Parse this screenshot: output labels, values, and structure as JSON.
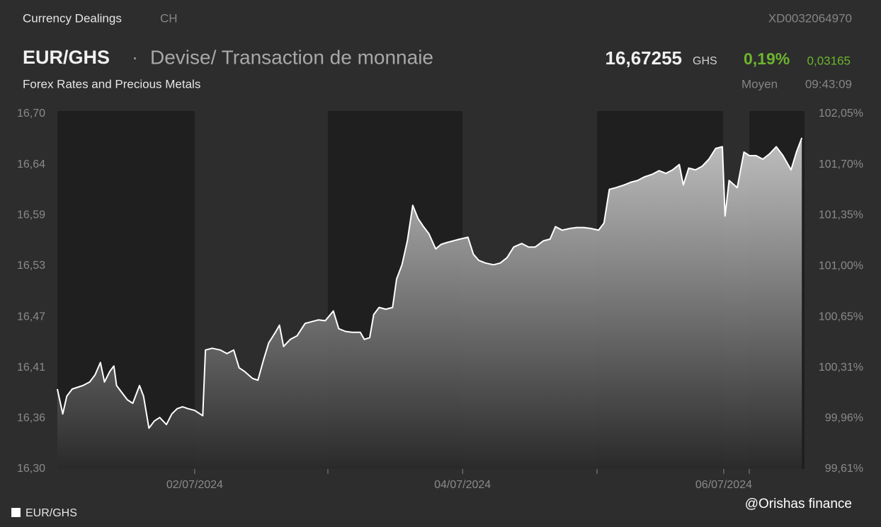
{
  "header": {
    "category": "Currency Dealings",
    "region": "CH",
    "isin": "XD0032064970",
    "pair": "EUR/GHS",
    "separator": "·",
    "description": "Devise/ Transaction de monnaie",
    "price": "16,67255",
    "currency": "GHS",
    "change_pct": "0,19%",
    "change_abs": "0,03165",
    "subtitle": "Forex Rates and Precious Metals",
    "price_type": "Moyen",
    "time": "09:43:09"
  },
  "watermark": "@Orishas finance",
  "chart_data": {
    "type": "area",
    "x": [
      0,
      0.04,
      0.07,
      0.11,
      0.15,
      0.19,
      0.24,
      0.28,
      0.32,
      0.35,
      0.39,
      0.42,
      0.44,
      0.48,
      0.52,
      0.56,
      0.61,
      0.64,
      0.68,
      0.72,
      0.76,
      0.81,
      0.85,
      0.89,
      0.93,
      0.97,
      1.02,
      1.08,
      1.1,
      1.15,
      1.21,
      1.26,
      1.31,
      1.35,
      1.39,
      1.45,
      1.49,
      1.53,
      1.57,
      1.62,
      1.65,
      1.68,
      1.73,
      1.78,
      1.84,
      1.89,
      1.94,
      1.99,
      2.05,
      2.09,
      2.14,
      2.19,
      2.25,
      2.28,
      2.32,
      2.35,
      2.39,
      2.44,
      2.49,
      2.52,
      2.56,
      2.6,
      2.64,
      2.68,
      2.72,
      2.76,
      2.81,
      2.85,
      2.89,
      2.94,
      2.99,
      3.05,
      3.09,
      3.13,
      3.18,
      3.24,
      3.29,
      3.34,
      3.39,
      3.45,
      3.5,
      3.55,
      3.61,
      3.66,
      3.7,
      3.75,
      3.81,
      3.86,
      3.91,
      3.96,
      4.02,
      4.06,
      4.1,
      4.15,
      4.21,
      4.26,
      4.31,
      4.36,
      4.42,
      4.47,
      4.52,
      4.57,
      4.62,
      4.65,
      4.69,
      4.74,
      4.79,
      4.84,
      4.89,
      4.94,
      4.96,
      4.99,
      5.05,
      5.1,
      5.14,
      5.19,
      5.24,
      5.29,
      5.34,
      5.39,
      5.45,
      5.49,
      5.53
    ],
    "series": [
      {
        "name": "EUR/GHS",
        "color": "#ffffff",
        "values": [
          16.39,
          16.362,
          16.382,
          16.39,
          16.392,
          16.394,
          16.398,
          16.406,
          16.42,
          16.398,
          16.41,
          16.416,
          16.394,
          16.386,
          16.378,
          16.374,
          16.394,
          16.382,
          16.346,
          16.354,
          16.358,
          16.35,
          16.362,
          16.368,
          16.37,
          16.368,
          16.366,
          16.36,
          16.434,
          16.436,
          16.434,
          16.43,
          16.434,
          16.414,
          16.41,
          16.402,
          16.4,
          16.422,
          16.442,
          16.454,
          16.462,
          16.438,
          16.446,
          16.45,
          16.464,
          16.466,
          16.468,
          16.467,
          16.478,
          16.458,
          16.455,
          16.454,
          16.454,
          16.446,
          16.448,
          16.474,
          16.482,
          16.48,
          16.482,
          16.514,
          16.53,
          16.557,
          16.597,
          16.582,
          16.573,
          16.565,
          16.548,
          16.553,
          16.555,
          16.557,
          16.559,
          16.561,
          16.542,
          16.535,
          16.532,
          16.53,
          16.532,
          16.538,
          16.55,
          16.554,
          16.55,
          16.55,
          16.557,
          16.559,
          16.573,
          16.569,
          16.571,
          16.572,
          16.572,
          16.571,
          16.569,
          16.577,
          16.615,
          16.617,
          16.62,
          16.623,
          16.625,
          16.629,
          16.632,
          16.636,
          16.633,
          16.637,
          16.643,
          16.62,
          16.639,
          16.637,
          16.641,
          16.649,
          16.661,
          16.663,
          16.585,
          16.625,
          16.617,
          16.657,
          16.653,
          16.653,
          16.649,
          16.655,
          16.663,
          16.653,
          16.637,
          16.657,
          16.673
        ]
      }
    ],
    "xlim": [
      0,
      5.55
    ],
    "xticks": [
      {
        "value": 1.02,
        "label": "02/07/2024"
      },
      {
        "value": 3.01,
        "label": "04/07/2024"
      },
      {
        "value": 4.95,
        "label": "06/07/2024"
      }
    ],
    "ylim": [
      16.3,
      16.7
    ],
    "yticks": [
      {
        "value": 16.3,
        "label": "16,30"
      },
      {
        "value": 16.357,
        "label": "16,36"
      },
      {
        "value": 16.414,
        "label": "16,41"
      },
      {
        "value": 16.471,
        "label": "16,47"
      },
      {
        "value": 16.529,
        "label": "16,53"
      },
      {
        "value": 16.586,
        "label": "16,59"
      },
      {
        "value": 16.643,
        "label": "16,64"
      },
      {
        "value": 16.7,
        "label": "16,70"
      }
    ],
    "y2lim": [
      99.61,
      102.05
    ],
    "y2ticks": [
      {
        "value": 99.61,
        "label": "99,61%"
      },
      {
        "value": 99.959,
        "label": "99,96%"
      },
      {
        "value": 100.307,
        "label": "100,31%"
      },
      {
        "value": 100.654,
        "label": "100,65%"
      },
      {
        "value": 101.004,
        "label": "101,00%"
      },
      {
        "value": 101.353,
        "label": "101,35%"
      },
      {
        "value": 101.701,
        "label": "101,70%"
      },
      {
        "value": 102.05,
        "label": "102,05%"
      }
    ],
    "grid": false
  }
}
